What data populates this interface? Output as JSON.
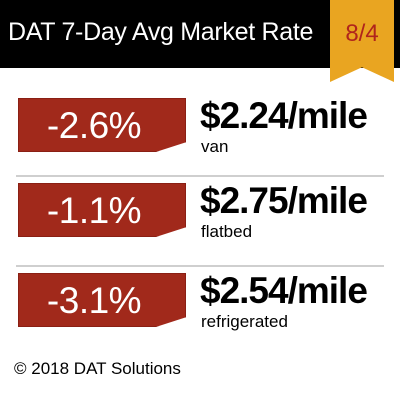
{
  "header": {
    "title": "DAT 7-Day Avg Market Rate",
    "date": "8/4"
  },
  "colors": {
    "header_bg": "#000000",
    "badge_gold": "#e9a521",
    "change_red": "#a1291b",
    "date_red": "#b0241c"
  },
  "rates": [
    {
      "change": "-2.6%",
      "rate": "$2.24/mile",
      "equipment": "van"
    },
    {
      "change": "-1.1%",
      "rate": "$2.75/mile",
      "equipment": "flatbed"
    },
    {
      "change": "-3.1%",
      "rate": "$2.54/mile",
      "equipment": "refrigerated"
    }
  ],
  "footer": {
    "copyright": "© 2018 DAT Solutions"
  }
}
